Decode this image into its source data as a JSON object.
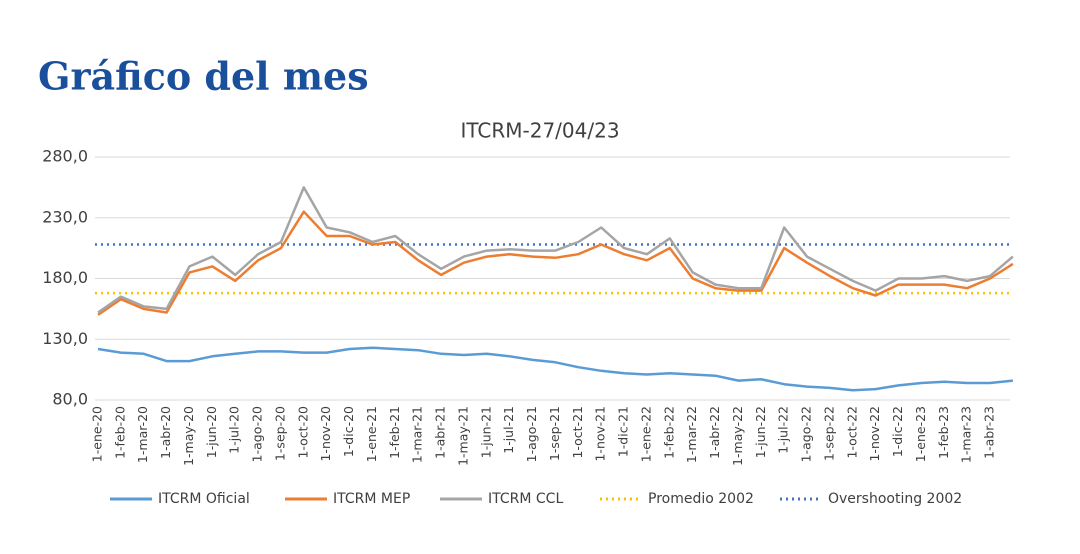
{
  "header": {
    "title": "Gráfico del mes"
  },
  "chart_data": {
    "type": "line",
    "title": "ITCRM-27/04/23",
    "categories": [
      "1-ene-20",
      "1-feb-20",
      "1-mar-20",
      "1-abr-20",
      "1-may-20",
      "1-jun-20",
      "1-jul-20",
      "1-ago-20",
      "1-sep-20",
      "1-oct-20",
      "1-nov-20",
      "1-dic-20",
      "1-ene-21",
      "1-feb-21",
      "1-mar-21",
      "1-abr-21",
      "1-may-21",
      "1-jun-21",
      "1-jul-21",
      "1-ago-21",
      "1-sep-21",
      "1-oct-21",
      "1-nov-21",
      "1-dic-21",
      "1-ene-22",
      "1-feb-22",
      "1-mar-22",
      "1-abr-22",
      "1-may-22",
      "1-jun-22",
      "1-jul-22",
      "1-ago-22",
      "1-sep-22",
      "1-oct-22",
      "1-nov-22",
      "1-dic-22",
      "1-ene-23",
      "1-feb-23",
      "1-mar-23",
      "1-abr-23",
      null
    ],
    "series": [
      {
        "name": "ITCRM Oficial",
        "color": "#5b9bd5",
        "values": [
          122,
          119,
          118,
          112,
          112,
          116,
          118,
          120,
          120,
          119,
          119,
          122,
          123,
          122,
          121,
          118,
          117,
          118,
          116,
          113,
          111,
          107,
          104,
          102,
          101,
          102,
          101,
          100,
          96,
          97,
          93,
          91,
          90,
          88,
          89,
          92,
          94,
          95,
          94,
          94,
          96
        ]
      },
      {
        "name": "ITCRM MEP",
        "color": "#ed7d31",
        "values": [
          150,
          163,
          155,
          152,
          185,
          190,
          178,
          195,
          205,
          235,
          215,
          215,
          208,
          210,
          195,
          183,
          193,
          198,
          200,
          198,
          197,
          200,
          208,
          200,
          195,
          205,
          180,
          172,
          170,
          170,
          205,
          193,
          182,
          172,
          166,
          175,
          175,
          175,
          172,
          180,
          192
        ]
      },
      {
        "name": "ITCRM CCL",
        "color": "#a5a5a5",
        "values": [
          152,
          165,
          157,
          155,
          190,
          198,
          183,
          200,
          210,
          255,
          222,
          218,
          210,
          215,
          200,
          188,
          198,
          203,
          204,
          203,
          203,
          210,
          222,
          205,
          200,
          213,
          185,
          175,
          172,
          172,
          222,
          198,
          188,
          178,
          170,
          180,
          180,
          182,
          178,
          182,
          198
        ]
      }
    ],
    "reference_lines": [
      {
        "name": "Promedio 2002",
        "color": "#ffc000",
        "value": 168
      },
      {
        "name": "Overshooting 2002",
        "color": "#4472c4",
        "value": 208
      }
    ],
    "ylim": [
      80,
      280
    ],
    "yticks": [
      {
        "value": 80,
        "label": "80,0"
      },
      {
        "value": 130,
        "label": "130,0"
      },
      {
        "value": 180,
        "label": "180,0"
      },
      {
        "value": 230,
        "label": "230,0"
      },
      {
        "value": 280,
        "label": "280,0"
      }
    ],
    "grid": true,
    "legend": "bottom"
  }
}
